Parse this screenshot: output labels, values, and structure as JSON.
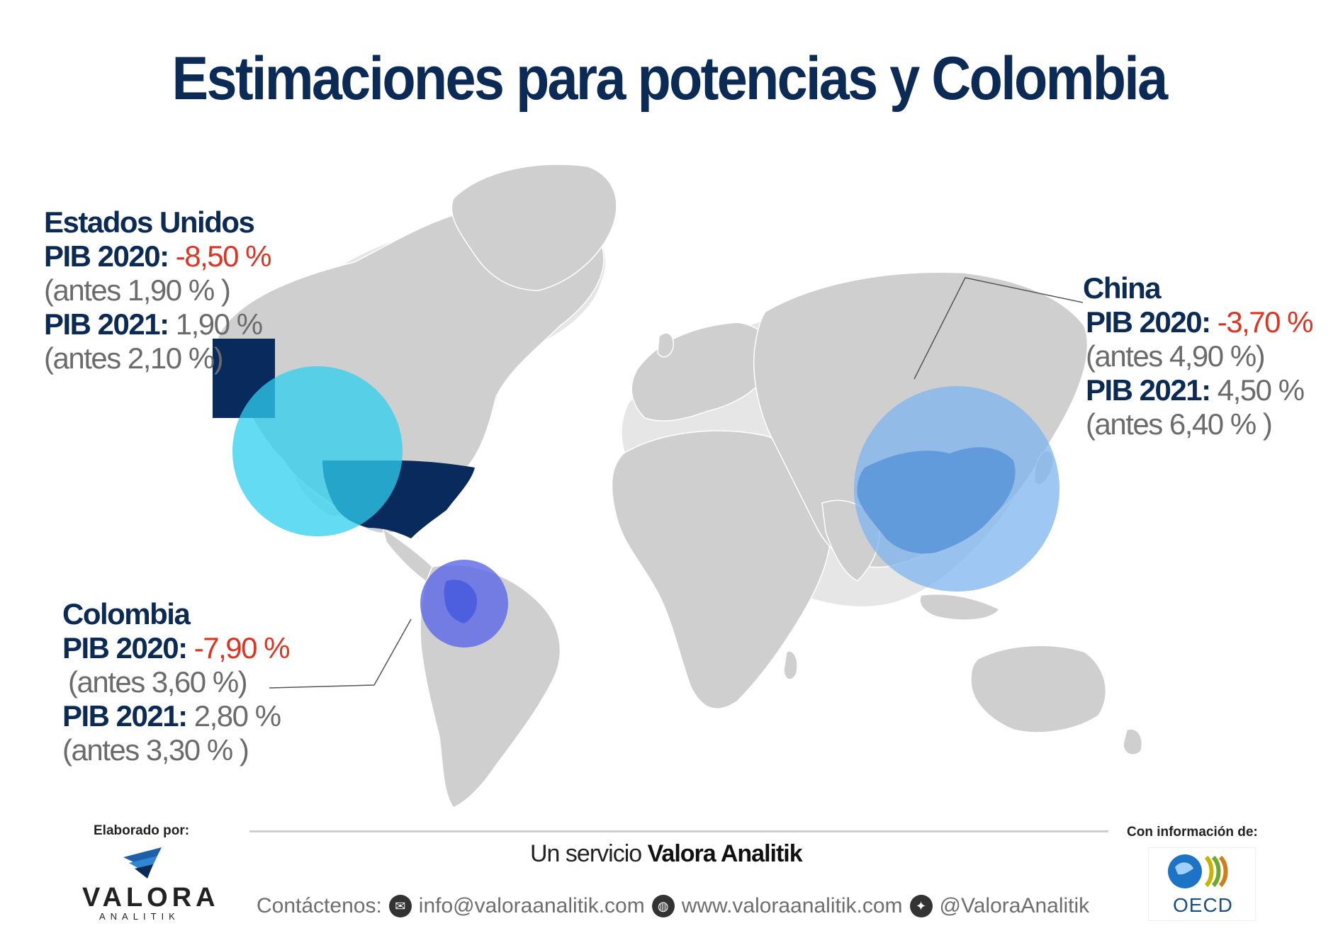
{
  "title": "Estimaciones para potencias y Colombia",
  "colors": {
    "land": "#cfcfcf",
    "land_shadow": "#e4e4e4",
    "title": "#0b2a55",
    "us_fill": "#082a5c",
    "us_circle": "#2fcfef",
    "china_fill": "#0a52a0",
    "china_circle": "#7fb4f0",
    "colombia_fill": "#1a3fbf",
    "colombia_circle": "#5a66e6",
    "negative": "#e03320"
  },
  "countries": {
    "us": {
      "name": "Estados Unidos",
      "pib2020_label": "PIB 2020:",
      "pib2020_value": "-8,50 %",
      "pib2020_prev": "(antes 1,90 % )",
      "pib2021_label": "PIB 2021:",
      "pib2021_value": "1,90 %",
      "pib2021_prev": "(antes 2,10 %)"
    },
    "china": {
      "name": "China",
      "pib2020_label": "PIB 2020:",
      "pib2020_value": "-3,70 %",
      "pib2020_prev": "(antes 4,90 %)",
      "pib2021_label": "PIB 2021:",
      "pib2021_value": "4,50 %",
      "pib2021_prev": "(antes 6,40 % )"
    },
    "colombia": {
      "name": "Colombia",
      "pib2020_label": "PIB 2020:",
      "pib2020_value": "-7,90 %",
      "pib2020_prev": "(antes 3,60 %)",
      "pib2021_label": "PIB 2021:",
      "pib2021_value": "2,80 %",
      "pib2021_prev": "(antes 3,30 % )"
    }
  },
  "footer": {
    "made_by": "Elaborado por:",
    "valora_word": "VALORA",
    "valora_sub": "ANALITIK",
    "service_prefix": "Un servicio ",
    "service_brand": "Valora Analitik",
    "contact_label": "Contáctenos:",
    "email": "info@valoraanalitik.com",
    "website": "www.valoraanalitik.com",
    "twitter": "@ValoraAnalitik",
    "info_from": "Con información de:",
    "oecd": "OECD"
  },
  "icons": {
    "email": "envelope-icon",
    "web": "globe-icon",
    "twitter": "twitter-bird-icon",
    "valora": "valora-logo-icon",
    "oecd": "oecd-logo-icon"
  }
}
